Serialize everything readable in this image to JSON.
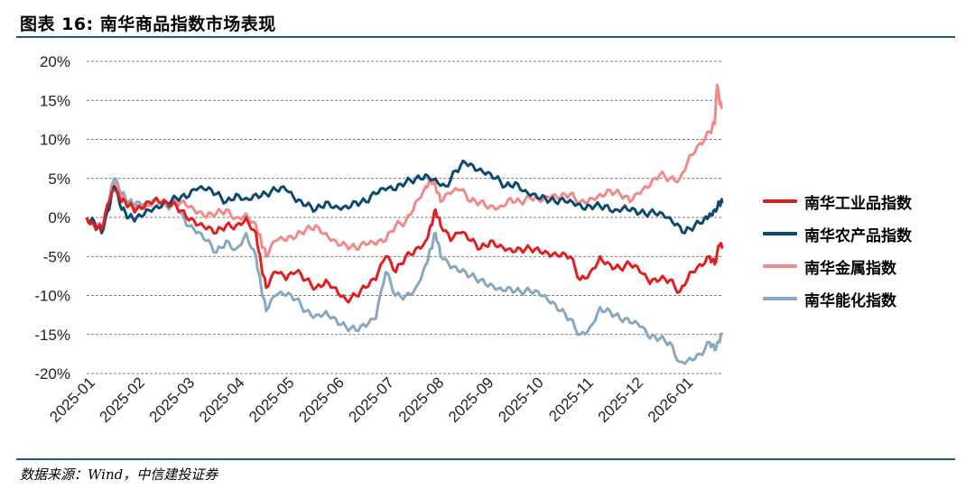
{
  "title": "图表 16:  南华商品指数市场表现",
  "source": "数据来源：Wind，中信建投证券",
  "chart_data": {
    "type": "line",
    "title": "",
    "xlabel": "",
    "ylabel": "",
    "ylim": [
      -20,
      20
    ],
    "yticks": [
      20,
      15,
      10,
      5,
      0,
      -5,
      -10,
      -15,
      -20
    ],
    "ytick_labels": [
      "20%",
      "15%",
      "10%",
      "5%",
      "0%",
      "-5%",
      "-10%",
      "-15%",
      "-20%"
    ],
    "xlim": [
      0,
      12.3
    ],
    "xticks": [
      0,
      1,
      2,
      3,
      4,
      5,
      6,
      7,
      8,
      9,
      10,
      11,
      12
    ],
    "xtick_labels": [
      "2025-01",
      "2025-02",
      "2025-03",
      "2025-04",
      "2025-05",
      "2025-06",
      "2025-07",
      "2025-08",
      "2025-09",
      "2025-10",
      "2025-11",
      "2025-12",
      "2026-01"
    ],
    "grid": "horizontal dashed",
    "legend_position": "right",
    "series": [
      {
        "name": "南华工业品指数",
        "color": "#e02020",
        "points": [
          [
            0,
            0
          ],
          [
            0.15,
            -1
          ],
          [
            0.3,
            -1.5
          ],
          [
            0.45,
            2
          ],
          [
            0.55,
            3.5
          ],
          [
            0.7,
            2
          ],
          [
            0.85,
            1.5
          ],
          [
            1.0,
            1
          ],
          [
            1.2,
            2
          ],
          [
            1.4,
            2.5
          ],
          [
            1.6,
            2
          ],
          [
            1.8,
            1.5
          ],
          [
            2.0,
            0
          ],
          [
            2.2,
            -1
          ],
          [
            2.4,
            -1.5
          ],
          [
            2.6,
            -2
          ],
          [
            2.8,
            -1
          ],
          [
            3.0,
            -1
          ],
          [
            3.2,
            0
          ],
          [
            3.4,
            -2
          ],
          [
            3.5,
            -6
          ],
          [
            3.6,
            -9
          ],
          [
            3.8,
            -7
          ],
          [
            4.0,
            -8
          ],
          [
            4.2,
            -7
          ],
          [
            4.4,
            -8
          ],
          [
            4.6,
            -9
          ],
          [
            4.8,
            -8
          ],
          [
            5.0,
            -9
          ],
          [
            5.2,
            -10.5
          ],
          [
            5.4,
            -10
          ],
          [
            5.6,
            -9
          ],
          [
            5.8,
            -8
          ],
          [
            6.0,
            -5
          ],
          [
            6.2,
            -7
          ],
          [
            6.4,
            -5
          ],
          [
            6.6,
            -4
          ],
          [
            6.8,
            -3
          ],
          [
            6.9,
            -1
          ],
          [
            7.0,
            1
          ],
          [
            7.1,
            -1
          ],
          [
            7.3,
            -3
          ],
          [
            7.5,
            -2
          ],
          [
            7.7,
            -3
          ],
          [
            7.9,
            -4
          ],
          [
            8.1,
            -3
          ],
          [
            8.3,
            -3.5
          ],
          [
            8.5,
            -4
          ],
          [
            8.7,
            -4
          ],
          [
            8.9,
            -4
          ],
          [
            9.1,
            -4.5
          ],
          [
            9.3,
            -5
          ],
          [
            9.5,
            -5
          ],
          [
            9.7,
            -5
          ],
          [
            9.9,
            -8
          ],
          [
            10.1,
            -7
          ],
          [
            10.3,
            -5
          ],
          [
            10.5,
            -6
          ],
          [
            10.7,
            -6.5
          ],
          [
            10.9,
            -6
          ],
          [
            11.1,
            -7
          ],
          [
            11.3,
            -8.5
          ],
          [
            11.5,
            -8
          ],
          [
            11.7,
            -8
          ],
          [
            11.9,
            -9.5
          ],
          [
            12.1,
            -7
          ],
          [
            12.3,
            -6
          ],
          [
            12.5,
            -5
          ],
          [
            12.6,
            -6
          ],
          [
            12.7,
            -3.5
          ],
          [
            12.75,
            -4
          ]
        ]
      },
      {
        "name": "南华农产品指数",
        "color": "#0e4a6e",
        "points": [
          [
            0,
            0
          ],
          [
            0.15,
            -0.5
          ],
          [
            0.3,
            -2
          ],
          [
            0.45,
            1
          ],
          [
            0.55,
            4
          ],
          [
            0.7,
            1
          ],
          [
            0.85,
            0
          ],
          [
            1.0,
            0
          ],
          [
            1.2,
            1
          ],
          [
            1.4,
            1.5
          ],
          [
            1.6,
            2
          ],
          [
            1.8,
            2.5
          ],
          [
            2.0,
            2.5
          ],
          [
            2.2,
            3.5
          ],
          [
            2.4,
            3.5
          ],
          [
            2.6,
            3
          ],
          [
            2.8,
            2
          ],
          [
            3.0,
            3
          ],
          [
            3.2,
            2.5
          ],
          [
            3.4,
            3
          ],
          [
            3.6,
            3
          ],
          [
            3.8,
            3.5
          ],
          [
            4.0,
            3.5
          ],
          [
            4.2,
            2
          ],
          [
            4.4,
            1.5
          ],
          [
            4.6,
            1
          ],
          [
            4.8,
            2
          ],
          [
            5.0,
            1.5
          ],
          [
            5.2,
            1.5
          ],
          [
            5.4,
            2
          ],
          [
            5.6,
            2
          ],
          [
            5.8,
            3
          ],
          [
            6.0,
            3.5
          ],
          [
            6.2,
            3.5
          ],
          [
            6.4,
            4.5
          ],
          [
            6.6,
            5
          ],
          [
            6.8,
            5.5
          ],
          [
            7.0,
            5
          ],
          [
            7.2,
            4
          ],
          [
            7.4,
            6
          ],
          [
            7.6,
            7
          ],
          [
            7.8,
            6
          ],
          [
            8.0,
            5.5
          ],
          [
            8.2,
            5
          ],
          [
            8.4,
            4
          ],
          [
            8.6,
            4.5
          ],
          [
            8.8,
            3.5
          ],
          [
            9.0,
            3
          ],
          [
            9.2,
            2.5
          ],
          [
            9.4,
            2
          ],
          [
            9.6,
            2
          ],
          [
            9.8,
            1.5
          ],
          [
            10.0,
            1
          ],
          [
            10.2,
            1.5
          ],
          [
            10.4,
            1.5
          ],
          [
            10.6,
            1
          ],
          [
            10.8,
            1.5
          ],
          [
            11.0,
            1
          ],
          [
            11.2,
            0.5
          ],
          [
            11.4,
            0.5
          ],
          [
            11.6,
            0
          ],
          [
            11.8,
            -1
          ],
          [
            12.0,
            -2
          ],
          [
            12.2,
            -1
          ],
          [
            12.4,
            0
          ],
          [
            12.5,
            0.5
          ],
          [
            12.6,
            1
          ],
          [
            12.7,
            2
          ],
          [
            12.75,
            1.8
          ]
        ]
      },
      {
        "name": "南华金属指数",
        "color": "#f08a8a",
        "points": [
          [
            0,
            0
          ],
          [
            0.15,
            -0.5
          ],
          [
            0.3,
            -1.5
          ],
          [
            0.45,
            1.5
          ],
          [
            0.55,
            4.5
          ],
          [
            0.7,
            2.5
          ],
          [
            0.85,
            1.5
          ],
          [
            1.0,
            1.5
          ],
          [
            1.2,
            1.5
          ],
          [
            1.4,
            2.5
          ],
          [
            1.6,
            2
          ],
          [
            1.8,
            2
          ],
          [
            2.0,
            1.5
          ],
          [
            2.2,
            0.5
          ],
          [
            2.4,
            0
          ],
          [
            2.6,
            0.5
          ],
          [
            2.8,
            1
          ],
          [
            3.0,
            0
          ],
          [
            3.2,
            0.5
          ],
          [
            3.4,
            -1
          ],
          [
            3.5,
            -3
          ],
          [
            3.6,
            -5
          ],
          [
            3.8,
            -3
          ],
          [
            4.0,
            -3
          ],
          [
            4.2,
            -2.5
          ],
          [
            4.4,
            -1.5
          ],
          [
            4.6,
            -1
          ],
          [
            4.8,
            -2
          ],
          [
            5.0,
            -3
          ],
          [
            5.2,
            -3.5
          ],
          [
            5.4,
            -4
          ],
          [
            5.6,
            -3.5
          ],
          [
            5.8,
            -3.5
          ],
          [
            6.0,
            -3
          ],
          [
            6.2,
            -1
          ],
          [
            6.4,
            -0.5
          ],
          [
            6.6,
            2
          ],
          [
            6.8,
            4
          ],
          [
            6.9,
            5
          ],
          [
            7.0,
            4
          ],
          [
            7.1,
            2
          ],
          [
            7.3,
            3
          ],
          [
            7.5,
            3.5
          ],
          [
            7.7,
            2
          ],
          [
            7.9,
            2
          ],
          [
            8.1,
            1.5
          ],
          [
            8.3,
            1.5
          ],
          [
            8.5,
            2.5
          ],
          [
            8.7,
            2
          ],
          [
            8.9,
            2.5
          ],
          [
            9.1,
            2
          ],
          [
            9.3,
            2.5
          ],
          [
            9.5,
            2.5
          ],
          [
            9.7,
            3
          ],
          [
            9.9,
            2
          ],
          [
            10.1,
            2.5
          ],
          [
            10.3,
            3
          ],
          [
            10.5,
            3.5
          ],
          [
            10.7,
            3
          ],
          [
            10.9,
            2
          ],
          [
            11.1,
            3
          ],
          [
            11.3,
            4
          ],
          [
            11.5,
            5.5
          ],
          [
            11.7,
            5
          ],
          [
            11.9,
            5
          ],
          [
            12.1,
            8
          ],
          [
            12.3,
            9.5
          ],
          [
            12.5,
            11
          ],
          [
            12.6,
            12
          ],
          [
            12.65,
            17
          ],
          [
            12.7,
            14.5
          ],
          [
            12.75,
            14
          ]
        ]
      },
      {
        "name": "南华能化指数",
        "color": "#8aa8bd",
        "points": [
          [
            0,
            0
          ],
          [
            0.15,
            -0.5
          ],
          [
            0.3,
            -1.5
          ],
          [
            0.45,
            2
          ],
          [
            0.55,
            5
          ],
          [
            0.7,
            3
          ],
          [
            0.85,
            2
          ],
          [
            1.0,
            2
          ],
          [
            1.2,
            2
          ],
          [
            1.4,
            2.5
          ],
          [
            1.6,
            1.5
          ],
          [
            1.8,
            1.5
          ],
          [
            2.0,
            -1
          ],
          [
            2.2,
            -2
          ],
          [
            2.4,
            -3
          ],
          [
            2.6,
            -4.5
          ],
          [
            2.8,
            -3
          ],
          [
            3.0,
            -4
          ],
          [
            3.2,
            -2
          ],
          [
            3.4,
            -5
          ],
          [
            3.5,
            -9
          ],
          [
            3.6,
            -12
          ],
          [
            3.8,
            -10
          ],
          [
            4.0,
            -10
          ],
          [
            4.2,
            -10.5
          ],
          [
            4.4,
            -12
          ],
          [
            4.6,
            -12.5
          ],
          [
            4.8,
            -12
          ],
          [
            5.0,
            -13
          ],
          [
            5.2,
            -14
          ],
          [
            5.4,
            -14.5
          ],
          [
            5.6,
            -14
          ],
          [
            5.8,
            -13
          ],
          [
            6.0,
            -7
          ],
          [
            6.2,
            -10
          ],
          [
            6.4,
            -10
          ],
          [
            6.6,
            -9
          ],
          [
            6.8,
            -6
          ],
          [
            6.9,
            -4
          ],
          [
            7.0,
            -2
          ],
          [
            7.1,
            -5
          ],
          [
            7.3,
            -6.5
          ],
          [
            7.5,
            -7
          ],
          [
            7.7,
            -7.5
          ],
          [
            7.9,
            -8
          ],
          [
            8.1,
            -8.5
          ],
          [
            8.3,
            -9
          ],
          [
            8.5,
            -9
          ],
          [
            8.7,
            -9.5
          ],
          [
            8.9,
            -9.5
          ],
          [
            9.1,
            -10
          ],
          [
            9.3,
            -11
          ],
          [
            9.5,
            -12
          ],
          [
            9.7,
            -13
          ],
          [
            9.9,
            -15
          ],
          [
            10.1,
            -14
          ],
          [
            10.3,
            -11.5
          ],
          [
            10.5,
            -12
          ],
          [
            10.7,
            -13
          ],
          [
            10.9,
            -13.5
          ],
          [
            11.1,
            -14
          ],
          [
            11.3,
            -15.5
          ],
          [
            11.5,
            -15.5
          ],
          [
            11.7,
            -16
          ],
          [
            11.9,
            -18.5
          ],
          [
            12.1,
            -18
          ],
          [
            12.3,
            -17.5
          ],
          [
            12.5,
            -16
          ],
          [
            12.6,
            -17
          ],
          [
            12.7,
            -16
          ],
          [
            12.75,
            -14.8
          ]
        ]
      }
    ]
  }
}
